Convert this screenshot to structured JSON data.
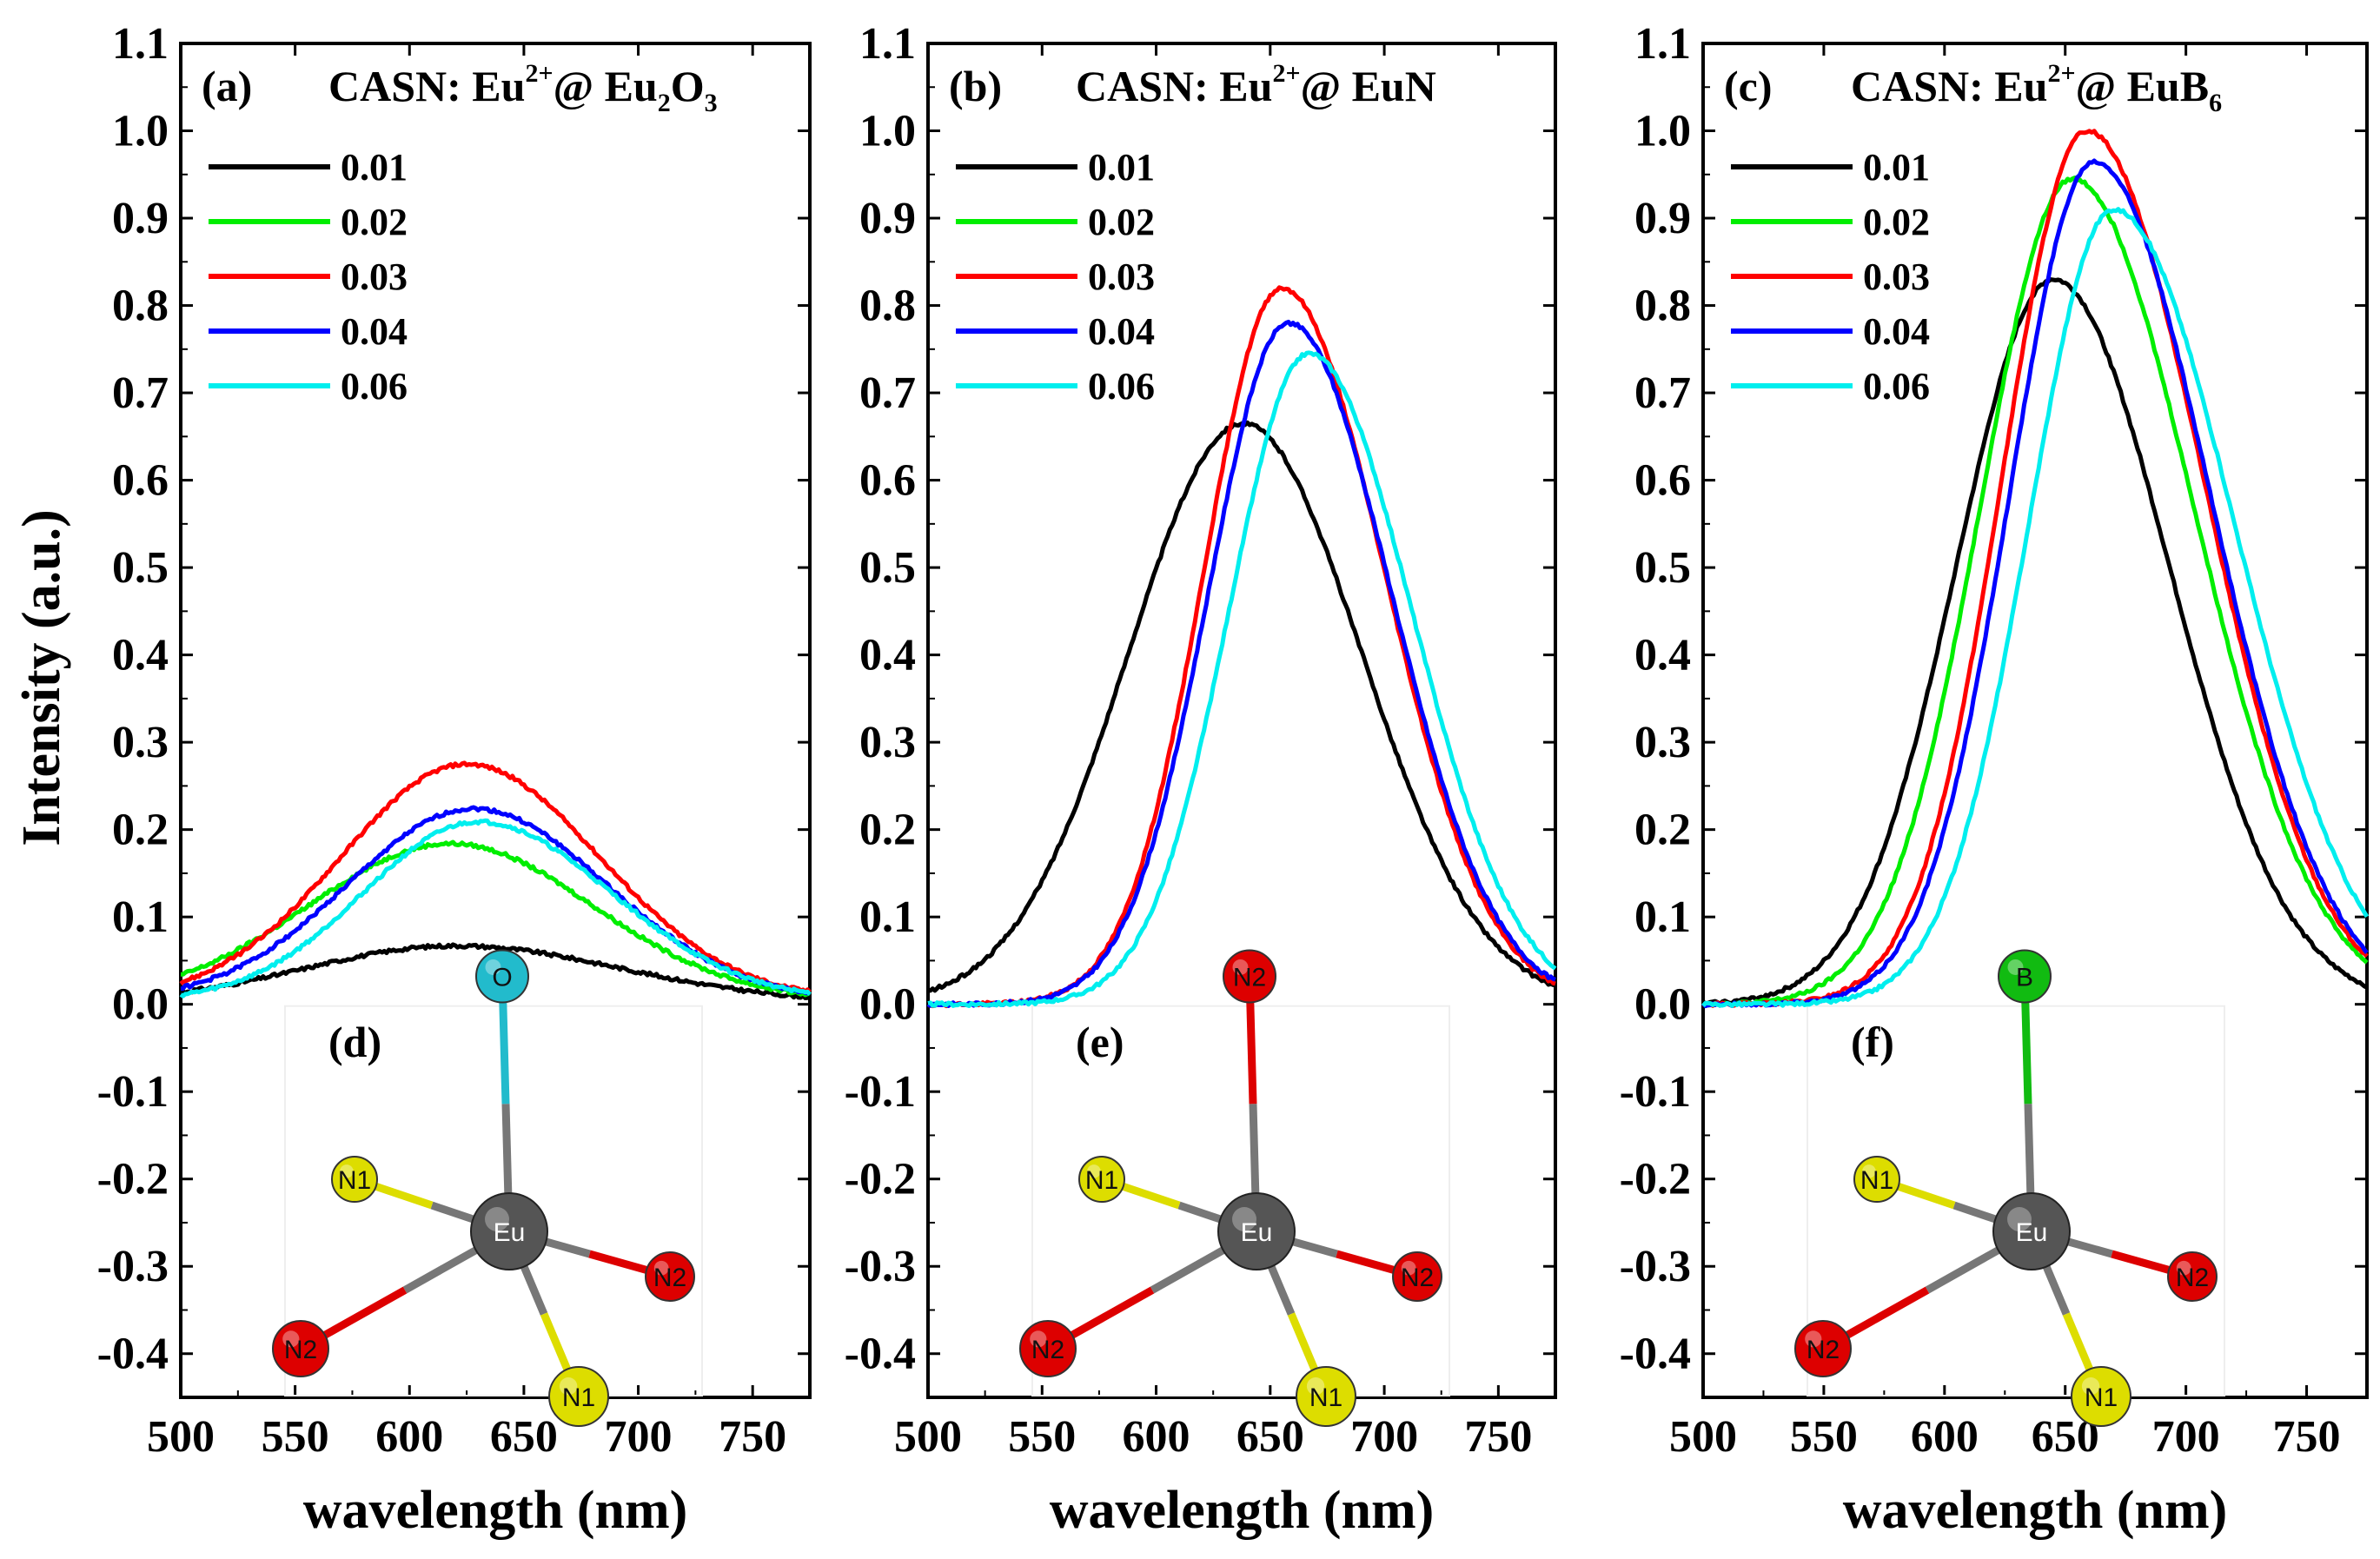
{
  "y_axis_title": "Intensity (a.u.)",
  "chart_data": [
    {
      "type": "line",
      "panel": "a",
      "panel_label": "(a)",
      "title": "CASN: Eu2+@ Eu2O3",
      "title_parts": {
        "main": "CASN: Eu",
        "sup": "2+",
        "mid": "@ Eu",
        "sub1": "2",
        "tail": "O",
        "sub2": "3"
      },
      "xlabel": "wavelength (nm)",
      "ylabel": "Intensity (a.u.)",
      "xlim": [
        500,
        775
      ],
      "ylim": [
        -0.45,
        1.1
      ],
      "xticks": [
        500,
        550,
        600,
        650,
        700,
        750
      ],
      "yticks": [
        -0.4,
        -0.3,
        -0.2,
        -0.1,
        0.0,
        0.1,
        0.2,
        0.3,
        0.4,
        0.5,
        0.6,
        0.7,
        0.8,
        0.9,
        1.0,
        1.1
      ],
      "series": [
        {
          "name": "0.01",
          "color": "#000000",
          "peak": 0.065,
          "center": 620,
          "sigma_left": 65,
          "sigma_right": 72,
          "baseline": 0.002
        },
        {
          "name": "0.02",
          "color": "#00ee00",
          "peak": 0.18,
          "center": 618,
          "sigma_left": 62,
          "sigma_right": 62,
          "baseline": 0.004
        },
        {
          "name": "0.03",
          "color": "#ff0000",
          "peak": 0.27,
          "center": 625,
          "sigma_left": 55,
          "sigma_right": 58,
          "baseline": 0.005
        },
        {
          "name": "0.04",
          "color": "#0000ff",
          "peak": 0.22,
          "center": 628,
          "sigma_left": 55,
          "sigma_right": 58,
          "baseline": 0.004
        },
        {
          "name": "0.06",
          "color": "#00eeee",
          "peak": 0.205,
          "center": 630,
          "sigma_left": 50,
          "sigma_right": 58,
          "baseline": 0.004
        }
      ],
      "inset": {
        "label": "(d)",
        "center_atom": "Eu",
        "top_atom": "O",
        "top_color": "#22bbcc"
      }
    },
    {
      "type": "line",
      "panel": "b",
      "panel_label": "(b)",
      "title": "CASN: Eu2+@ EuN",
      "title_parts": {
        "main": "CASN: Eu",
        "sup": "2+",
        "mid": "@ EuN",
        "sub1": "",
        "tail": "",
        "sub2": ""
      },
      "xlabel": "wavelength (nm)",
      "ylabel": "",
      "xlim": [
        500,
        775
      ],
      "ylim": [
        -0.45,
        1.1
      ],
      "xticks": [
        500,
        550,
        600,
        650,
        700,
        750
      ],
      "yticks": [
        -0.4,
        -0.3,
        -0.2,
        -0.1,
        0.0,
        0.1,
        0.2,
        0.3,
        0.4,
        0.5,
        0.6,
        0.7,
        0.8,
        0.9,
        1.0,
        1.1
      ],
      "series": [
        {
          "name": "0.01",
          "color": "#000000",
          "peak": 0.665,
          "center": 638,
          "sigma_left": 50,
          "sigma_right": 52,
          "baseline": 0.0
        },
        {
          "name": "0.02",
          "color": "#00ee00",
          "peak": 0.0,
          "center": 655,
          "sigma_left": 35,
          "sigma_right": 45,
          "baseline": 0.0
        },
        {
          "name": "0.03",
          "color": "#ff0000",
          "peak": 0.82,
          "center": 655,
          "sigma_left": 34,
          "sigma_right": 45,
          "baseline": 0.0
        },
        {
          "name": "0.04",
          "color": "#0000ff",
          "peak": 0.78,
          "center": 658,
          "sigma_left": 35,
          "sigma_right": 45,
          "baseline": 0.0
        },
        {
          "name": "0.06",
          "color": "#00eeee",
          "peak": 0.745,
          "center": 667,
          "sigma_left": 35,
          "sigma_right": 45,
          "baseline": 0.0
        }
      ],
      "inset": {
        "label": "(e)",
        "center_atom": "Eu",
        "top_atom": "N2",
        "top_color": "#dd0000"
      }
    },
    {
      "type": "line",
      "panel": "c",
      "panel_label": "(c)",
      "title": "CASN: Eu2+@ EuB6",
      "title_parts": {
        "main": "CASN: Eu",
        "sup": "2+",
        "mid": "@ EuB",
        "sub1": "6",
        "tail": "",
        "sub2": ""
      },
      "xlabel": "wavelength (nm)",
      "ylabel": "",
      "xlim": [
        500,
        775
      ],
      "ylim": [
        -0.45,
        1.1
      ],
      "xticks": [
        500,
        550,
        600,
        650,
        700,
        750
      ],
      "yticks": [
        -0.4,
        -0.3,
        -0.2,
        -0.1,
        0.0,
        0.1,
        0.2,
        0.3,
        0.4,
        0.5,
        0.6,
        0.7,
        0.8,
        0.9,
        1.0,
        1.1
      ],
      "series": [
        {
          "name": "0.01",
          "color": "#000000",
          "peak": 0.83,
          "center": 645,
          "sigma_left": 40,
          "sigma_right": 48,
          "baseline": 0.0
        },
        {
          "name": "0.02",
          "color": "#00ee00",
          "peak": 0.945,
          "center": 653,
          "sigma_left": 38,
          "sigma_right": 50,
          "baseline": 0.0
        },
        {
          "name": "0.03",
          "color": "#ff0000",
          "peak": 1.0,
          "center": 659,
          "sigma_left": 35,
          "sigma_right": 48,
          "baseline": 0.0
        },
        {
          "name": "0.04",
          "color": "#0000ff",
          "peak": 0.965,
          "center": 662,
          "sigma_left": 35,
          "sigma_right": 48,
          "baseline": 0.0
        },
        {
          "name": "0.06",
          "color": "#00eeee",
          "peak": 0.91,
          "center": 670,
          "sigma_left": 35,
          "sigma_right": 50,
          "baseline": 0.0
        }
      ],
      "inset": {
        "label": "(f)",
        "center_atom": "Eu",
        "top_atom": "B",
        "top_color": "#11bb11"
      }
    }
  ],
  "inset_atoms": {
    "n1": "N1",
    "n2": "N2",
    "eu": "Eu"
  }
}
